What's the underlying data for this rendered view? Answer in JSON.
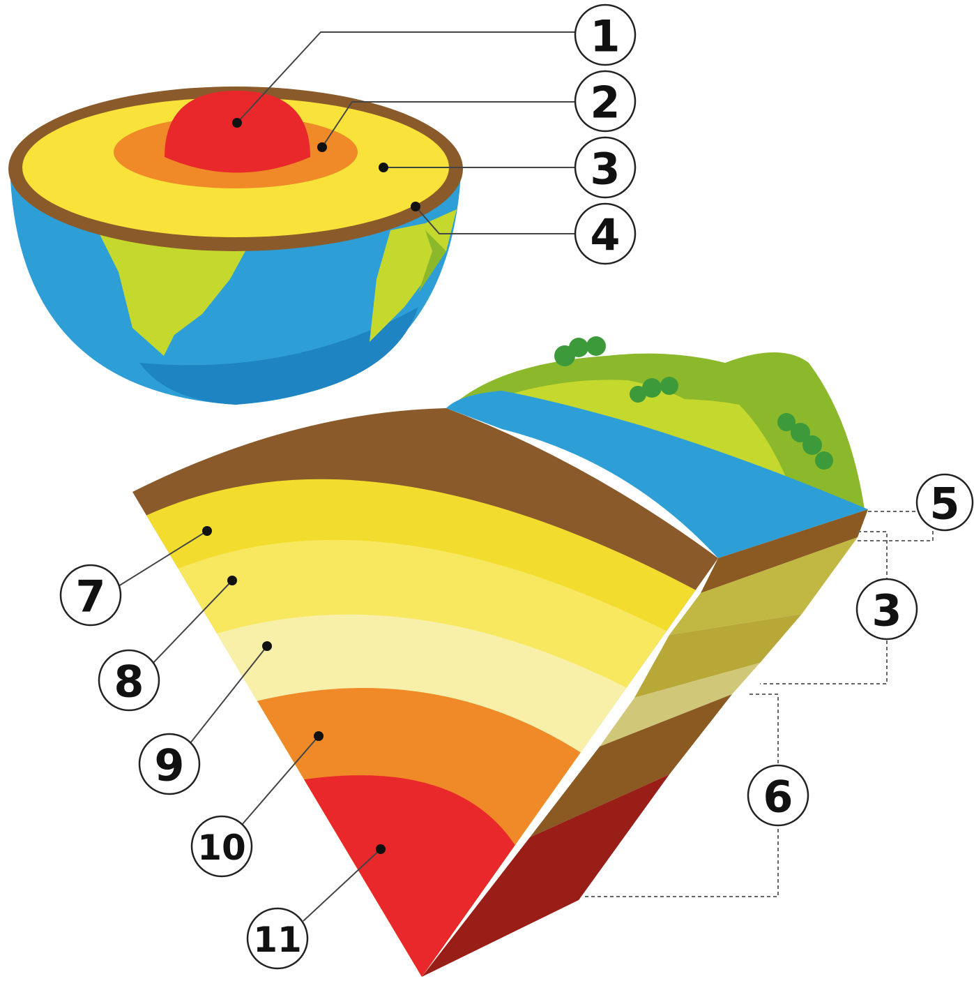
{
  "colors": {
    "inner_core": "#e8282a",
    "outer_core": "#f08a28",
    "mantle": "#f9e23a",
    "crust": "#8a5a2a",
    "ocean": "#2e9fd6",
    "ocean_dark": "#1f85c2",
    "land": "#c5d82e",
    "land_dark": "#8cb92c",
    "tree": "#3d9a3a",
    "layer_upper_mantle": "#f2dd2e",
    "layer_transition": "#f7e860",
    "layer_lower_mantle": "#f8f0a8",
    "side_dark_brown": "#8a5a22",
    "side_dark_red": "#9a1e18"
  },
  "callouts": [
    {
      "id": "1",
      "label": "1"
    },
    {
      "id": "2",
      "label": "2"
    },
    {
      "id": "3",
      "label": "3"
    },
    {
      "id": "4",
      "label": "4"
    },
    {
      "id": "5",
      "label": "5"
    },
    {
      "id": "3b",
      "label": "3"
    },
    {
      "id": "6",
      "label": "6"
    },
    {
      "id": "7",
      "label": "7"
    },
    {
      "id": "8",
      "label": "8"
    },
    {
      "id": "9",
      "label": "9"
    },
    {
      "id": "10",
      "label": "10"
    },
    {
      "id": "11",
      "label": "11"
    }
  ]
}
